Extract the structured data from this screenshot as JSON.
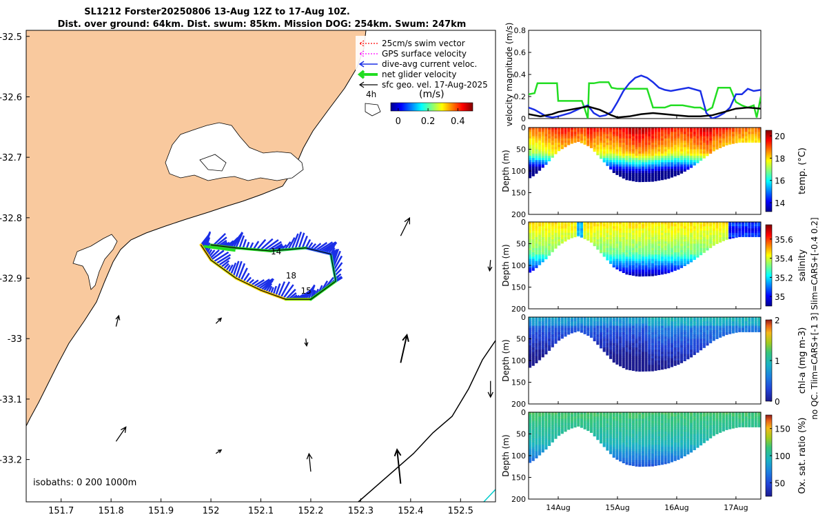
{
  "title": {
    "line1": "SL1212 Forster20250806 13-Aug 12Z to 17-Aug 10Z.",
    "line2": "Dist. over ground: 64km. Dist. swum: 85km. Mission DOG: 254km. Swum: 247km"
  },
  "colors": {
    "land": "#f9c99e",
    "swim": "#ff0000",
    "gps": "#ff00ff",
    "current": "#1a2ee6",
    "net": "#22dd22",
    "sfc": "#000000",
    "speed_black": "#000000"
  },
  "chart_data": [
    {
      "type": "map",
      "name": "track-map",
      "xlim": [
        151.63,
        152.57
      ],
      "ylim": [
        -33.27,
        -32.49
      ],
      "x_ticks": [
        151.7,
        151.8,
        151.9,
        152,
        152.1,
        152.2,
        152.3,
        152.4,
        152.5
      ],
      "x_tick_labels": [
        "151.7",
        "151.8",
        "151.9",
        "152",
        "152.1",
        "152.2",
        "152.3",
        "152.4",
        "152.5"
      ],
      "y_ticks": [
        -32.5,
        -32.6,
        -32.7,
        -32.8,
        -32.9,
        -33,
        -33.1,
        -33.2
      ],
      "y_tick_labels": [
        "-32.5",
        "-32.6",
        "-32.7",
        "-32.8",
        "-32.9",
        "-33",
        "-33.1",
        "-33.2"
      ],
      "legend": {
        "items": [
          {
            "label": "25cm/s swim vector",
            "color": "#ff0000",
            "style": "dotted"
          },
          {
            "label": "GPS surface velocity",
            "color": "#ff00ff",
            "style": "dotted"
          },
          {
            "label": "dive-avg current veloc.",
            "color": "#1a2ee6",
            "style": "solid"
          },
          {
            "label": "net glider velocity",
            "color": "#22dd22",
            "style": "thick"
          },
          {
            "label": "sfc geo. vel. 17-Aug-2025",
            "color": "#000000",
            "style": "solid"
          }
        ],
        "scale_label": "4h",
        "colorbar_title": "(m/s)",
        "colorbar_ticks": [
          0,
          0.2,
          0.4
        ],
        "colorbar_tick_labels": [
          "0",
          "0.2",
          "0.4"
        ],
        "colorbar_range": [
          -0.05,
          0.5
        ]
      },
      "isobaths_label": "isobaths: 0   200  1000m",
      "track_labels": [
        "14",
        "18",
        "15"
      ],
      "track": [
        [
          151.98,
          -32.845
        ],
        [
          152.0,
          -32.87
        ],
        [
          152.05,
          -32.9
        ],
        [
          152.1,
          -32.92
        ],
        [
          152.15,
          -32.935
        ],
        [
          152.2,
          -32.935
        ],
        [
          152.25,
          -32.905
        ],
        [
          152.24,
          -32.86
        ],
        [
          152.19,
          -32.85
        ],
        [
          152.12,
          -32.855
        ],
        [
          152.05,
          -32.85
        ],
        [
          152.0,
          -32.845
        ]
      ],
      "geo_vectors": [
        {
          "lon": 152.38,
          "lat": -32.83,
          "u": 0.05,
          "v": 0.1
        },
        {
          "lon": 152.56,
          "lat": -32.87,
          "u": -0.005,
          "v": -0.06
        },
        {
          "lon": 151.81,
          "lat": -32.98,
          "u": 0.015,
          "v": 0.06
        },
        {
          "lon": 152.01,
          "lat": -32.975,
          "u": 0.03,
          "v": 0.03
        },
        {
          "lon": 152.19,
          "lat": -33.0,
          "u": 0.005,
          "v": -0.04
        },
        {
          "lon": 152.38,
          "lat": -33.04,
          "u": 0.035,
          "v": 0.155
        },
        {
          "lon": 152.56,
          "lat": -33.07,
          "u": 0.0,
          "v": -0.09
        },
        {
          "lon": 151.81,
          "lat": -33.17,
          "u": 0.055,
          "v": 0.08
        },
        {
          "lon": 152.01,
          "lat": -33.19,
          "u": 0.03,
          "v": 0.02
        },
        {
          "lon": 152.2,
          "lat": -33.22,
          "u": -0.01,
          "v": 0.1
        },
        {
          "lon": 152.38,
          "lat": -33.24,
          "u": -0.02,
          "v": 0.19
        }
      ]
    },
    {
      "type": "line",
      "name": "velocity-magnitude",
      "ylabel": "velocity magnitude (m/s)",
      "ylim": [
        0,
        0.8
      ],
      "y_ticks": [
        0,
        0.2,
        0.4,
        0.6,
        0.8
      ],
      "y_tick_labels": [
        "0",
        "0.2",
        "0.4",
        "0.6",
        "0.8"
      ],
      "xlim": [
        13.5,
        17.42
      ],
      "series": [
        {
          "name": "net glider velocity",
          "color": "#22dd22",
          "x": [
            13.5,
            13.6,
            13.65,
            13.75,
            13.98,
            14.0,
            14.2,
            14.4,
            14.44,
            14.47,
            14.5,
            14.52,
            14.6,
            14.7,
            14.85,
            14.9,
            15.0,
            15.1,
            15.3,
            15.4,
            15.5,
            15.6,
            15.7,
            15.8,
            15.9,
            16.0,
            16.1,
            16.3,
            16.4,
            16.5,
            16.6,
            16.7,
            16.8,
            16.9,
            17.0,
            17.1,
            17.2,
            17.3,
            17.35,
            17.42
          ],
          "y": [
            0.22,
            0.23,
            0.32,
            0.32,
            0.32,
            0.16,
            0.16,
            0.16,
            0.1,
            0.05,
            0.0,
            0.32,
            0.32,
            0.33,
            0.33,
            0.28,
            0.27,
            0.27,
            0.27,
            0.27,
            0.27,
            0.1,
            0.1,
            0.1,
            0.12,
            0.12,
            0.12,
            0.1,
            0.1,
            0.07,
            0.1,
            0.28,
            0.28,
            0.28,
            0.15,
            0.12,
            0.1,
            0.12,
            0.01,
            0.2
          ]
        },
        {
          "name": "dive-avg current",
          "color": "#1a2ee6",
          "x": [
            13.5,
            13.6,
            13.7,
            13.8,
            13.9,
            14.0,
            14.2,
            14.4,
            14.5,
            14.6,
            14.7,
            14.8,
            14.9,
            15.0,
            15.1,
            15.2,
            15.3,
            15.4,
            15.5,
            15.6,
            15.7,
            15.8,
            15.9,
            16.0,
            16.2,
            16.4,
            16.5,
            16.6,
            16.7,
            16.8,
            16.9,
            17.0,
            17.1,
            17.2,
            17.3,
            17.42
          ],
          "y": [
            0.1,
            0.08,
            0.05,
            0.02,
            0.01,
            0.02,
            0.05,
            0.1,
            0.12,
            0.05,
            0.02,
            0.03,
            0.06,
            0.15,
            0.25,
            0.32,
            0.37,
            0.39,
            0.37,
            0.33,
            0.28,
            0.26,
            0.25,
            0.26,
            0.28,
            0.25,
            0.05,
            0.0,
            0.02,
            0.05,
            0.1,
            0.22,
            0.22,
            0.27,
            0.25,
            0.26
          ]
        },
        {
          "name": "sfc geo velocity",
          "color": "#000000",
          "x": [
            13.5,
            13.7,
            13.9,
            14.0,
            14.2,
            14.4,
            14.5,
            14.7,
            14.9,
            15.0,
            15.2,
            15.4,
            15.6,
            15.8,
            16.0,
            16.2,
            16.4,
            16.6,
            16.8,
            17.0,
            17.2,
            17.42
          ],
          "y": [
            0.04,
            0.02,
            0.04,
            0.06,
            0.08,
            0.1,
            0.11,
            0.08,
            0.03,
            0.01,
            0.02,
            0.04,
            0.05,
            0.04,
            0.03,
            0.02,
            0.02,
            0.03,
            0.06,
            0.09,
            0.1,
            0.09
          ]
        }
      ]
    },
    {
      "type": "heatmap",
      "name": "temperature-section",
      "ylabel": "Depth (m)",
      "ylim": [
        0,
        200
      ],
      "y_ticks": [
        0,
        50,
        100,
        150,
        200
      ],
      "y_tick_labels": [
        "0",
        "50",
        "100",
        "150",
        "200"
      ],
      "colorbar_label": "temp. (°C)",
      "colorbar_range": [
        13.2,
        20.5
      ],
      "colorbar_ticks": [
        14,
        16,
        18,
        20
      ],
      "colorbar_tick_labels": [
        "14",
        "16",
        "18",
        "20"
      ]
    },
    {
      "type": "heatmap",
      "name": "salinity-section",
      "ylabel": "Depth (m)",
      "ylim": [
        0,
        200
      ],
      "y_ticks": [
        0,
        50,
        100,
        150,
        200
      ],
      "y_tick_labels": [
        "0",
        "50",
        "100",
        "150",
        "200"
      ],
      "colorbar_label": "salinity",
      "colorbar_range": [
        34.9,
        35.75
      ],
      "colorbar_ticks": [
        35,
        35.2,
        35.4,
        35.6
      ],
      "colorbar_tick_labels": [
        "35",
        "35.2",
        "35.4",
        "35.6"
      ]
    },
    {
      "type": "heatmap",
      "name": "chla-section",
      "ylabel": "Depth (m)",
      "ylim": [
        0,
        200
      ],
      "y_ticks": [
        0,
        50,
        100,
        150,
        200
      ],
      "y_tick_labels": [
        "0",
        "50",
        "100",
        "150",
        "200"
      ],
      "colorbar_label": "chl-a (mg m-3)",
      "colorbar_range": [
        0,
        2
      ],
      "colorbar_ticks": [
        0,
        1,
        2
      ],
      "colorbar_tick_labels": [
        "0",
        "1",
        "2"
      ]
    },
    {
      "type": "heatmap",
      "name": "oxygen-section",
      "ylabel": "Depth (m)",
      "ylim": [
        0,
        200
      ],
      "y_ticks": [
        0,
        50,
        100,
        150,
        200
      ],
      "y_tick_labels": [
        "0",
        "50",
        "100",
        "150",
        "200"
      ],
      "colorbar_label": "Ox. sat. ratio (%)",
      "colorbar_range": [
        25,
        175
      ],
      "colorbar_ticks": [
        50,
        100,
        150
      ],
      "colorbar_tick_labels": [
        "50",
        "100",
        "150"
      ],
      "x_ticks": [
        14,
        15,
        16,
        17
      ],
      "x_tick_labels": [
        "14Aug",
        "15Aug",
        "16Aug",
        "17Aug"
      ]
    }
  ],
  "side_note": "no QC. Tlim=CARS+[-1 3] Slim=CARS+[-0.4 0.2]"
}
